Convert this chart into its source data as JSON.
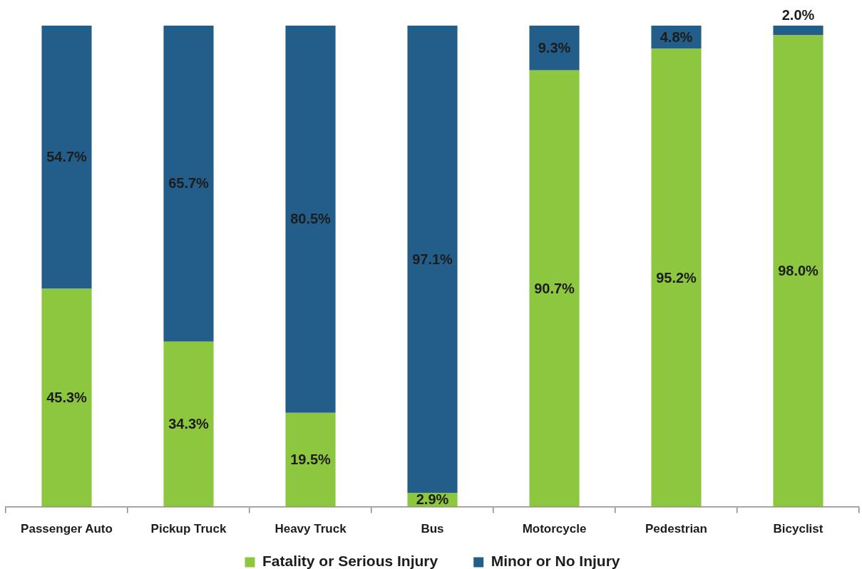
{
  "chart_data": {
    "type": "bar",
    "stacked": true,
    "categories": [
      "Passenger Auto",
      "Pickup Truck",
      "Heavy Truck",
      "Bus",
      "Motorcycle",
      "Pedestrian",
      "Bicyclist"
    ],
    "series": [
      {
        "name": "Fatality or Serious Injury",
        "color": "#8dc63f",
        "values": [
          45.3,
          34.3,
          19.5,
          2.9,
          90.7,
          95.2,
          98.0
        ],
        "value_labels": [
          "45.3%",
          "34.3%",
          "19.5%",
          "2.9%",
          "90.7%",
          "95.2%",
          "98.0%"
        ]
      },
      {
        "name": "Minor or No Injury",
        "color": "#235d8a",
        "values": [
          54.7,
          65.7,
          80.5,
          97.1,
          9.3,
          4.8,
          2.0
        ],
        "value_labels": [
          "54.7%",
          "65.7%",
          "80.5%",
          "97.1%",
          "9.3%",
          "4.8%",
          "2.0%"
        ]
      }
    ],
    "ylim": [
      0,
      100
    ],
    "tick_labels": "x",
    "legend": "bottom",
    "grid": false
  }
}
